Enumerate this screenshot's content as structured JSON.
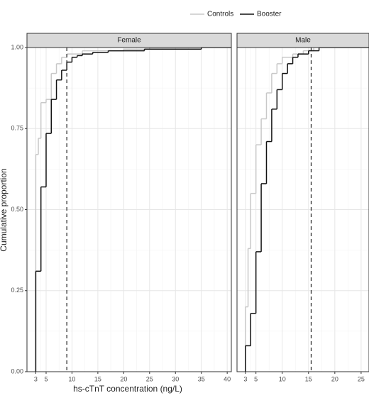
{
  "chart_data": {
    "type": "step",
    "x_label": "hs-cTnT concentration (ng/L)",
    "y_label": "Cumulative proportion",
    "ylim": [
      0,
      1
    ],
    "yticks": [
      {
        "value": 0,
        "label": "0.00"
      },
      {
        "value": 0.25,
        "label": "0.25"
      },
      {
        "value": 0.5,
        "label": "0.50"
      },
      {
        "value": 0.75,
        "label": "0.75"
      },
      {
        "value": 1,
        "label": "1.00"
      }
    ],
    "grid": true,
    "panels": [
      {
        "title": "Female",
        "xlim": [
          1.3,
          40.8
        ],
        "xticks": [
          3,
          5,
          10,
          15,
          20,
          25,
          30,
          35,
          40
        ],
        "threshold": 9,
        "series": [
          {
            "name": "Controls",
            "color": "#c8c8c8",
            "x": [
              3,
              3.5,
              4,
              5,
              6,
              7,
              8,
              9,
              12,
              20,
              25
            ],
            "values": [
              0.67,
              0.72,
              0.83,
              0.84,
              0.92,
              0.95,
              0.97,
              0.98,
              0.99,
              0.995,
              1
            ]
          },
          {
            "name": "Booster",
            "color": "#111111",
            "x": [
              3,
              4,
              5,
              6,
              7,
              8,
              9,
              10,
              11,
              12,
              14,
              17,
              24,
              35
            ],
            "values": [
              0.31,
              0.57,
              0.735,
              0.84,
              0.9,
              0.93,
              0.955,
              0.97,
              0.975,
              0.98,
              0.985,
              0.99,
              0.995,
              1
            ]
          }
        ]
      },
      {
        "title": "Male",
        "xlim": [
          1.4,
          26.5
        ],
        "xticks": [
          3,
          5,
          10,
          15,
          20,
          25
        ],
        "threshold": 15.5,
        "series": [
          {
            "name": "Controls",
            "color": "#c8c8c8",
            "x": [
              3,
              3.5,
              4,
              5,
              6,
              7,
              8,
              9,
              10,
              12,
              14,
              16
            ],
            "values": [
              0.2,
              0.38,
              0.55,
              0.7,
              0.78,
              0.86,
              0.92,
              0.95,
              0.97,
              0.98,
              0.99,
              1
            ]
          },
          {
            "name": "Booster",
            "color": "#111111",
            "x": [
              3,
              4,
              5,
              6,
              7,
              8,
              9,
              10,
              11,
              12,
              13,
              15,
              17
            ],
            "values": [
              0.08,
              0.18,
              0.37,
              0.58,
              0.71,
              0.81,
              0.87,
              0.92,
              0.95,
              0.97,
              0.98,
              0.99,
              1
            ]
          }
        ]
      }
    ]
  }
}
